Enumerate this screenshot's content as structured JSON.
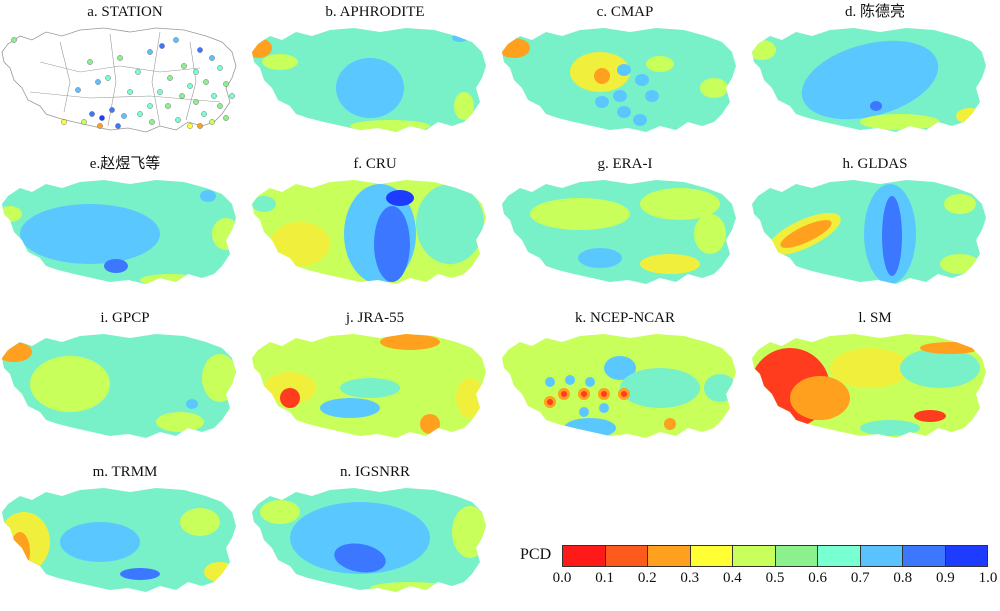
{
  "panels": [
    {
      "title": "a. STATION"
    },
    {
      "title": "b. APHRODITE"
    },
    {
      "title": "c. CMAP"
    },
    {
      "title": "d. 陈德亮"
    },
    {
      "title": "e.赵煜飞等"
    },
    {
      "title": "f. CRU"
    },
    {
      "title": "g. ERA-I"
    },
    {
      "title": "h. GLDAS"
    },
    {
      "title": "i. GPCP"
    },
    {
      "title": "j. JRA-55"
    },
    {
      "title": "k. NCEP-NCAR"
    },
    {
      "title": "l. SM"
    },
    {
      "title": "m. TRMM"
    },
    {
      "title": "n. IGSNRR"
    }
  ],
  "legend": {
    "label": "PCD",
    "colors": [
      "#ff1a1a",
      "#ff5a1e",
      "#ffa01e",
      "#ffff33",
      "#c8ff5a",
      "#8cf08c",
      "#78ffd2",
      "#5ac3ff",
      "#3c78ff",
      "#1e3cff"
    ],
    "ticks": [
      "0.0",
      "0.1",
      "0.2",
      "0.3",
      "0.4",
      "0.5",
      "0.6",
      "0.7",
      "0.8",
      "0.9",
      "1.0"
    ]
  },
  "colors": {
    "base": "#78f0c8",
    "light_blue": "#5ac8ff",
    "blue": "#3c78ff",
    "dark_blue": "#1e3cff",
    "yellow_green": "#c8ff5a",
    "yellow": "#f0f03c",
    "orange": "#ffa01e",
    "red": "#ff3c1e",
    "station_map_fill": "#ffffff",
    "boundary": "#999999"
  }
}
